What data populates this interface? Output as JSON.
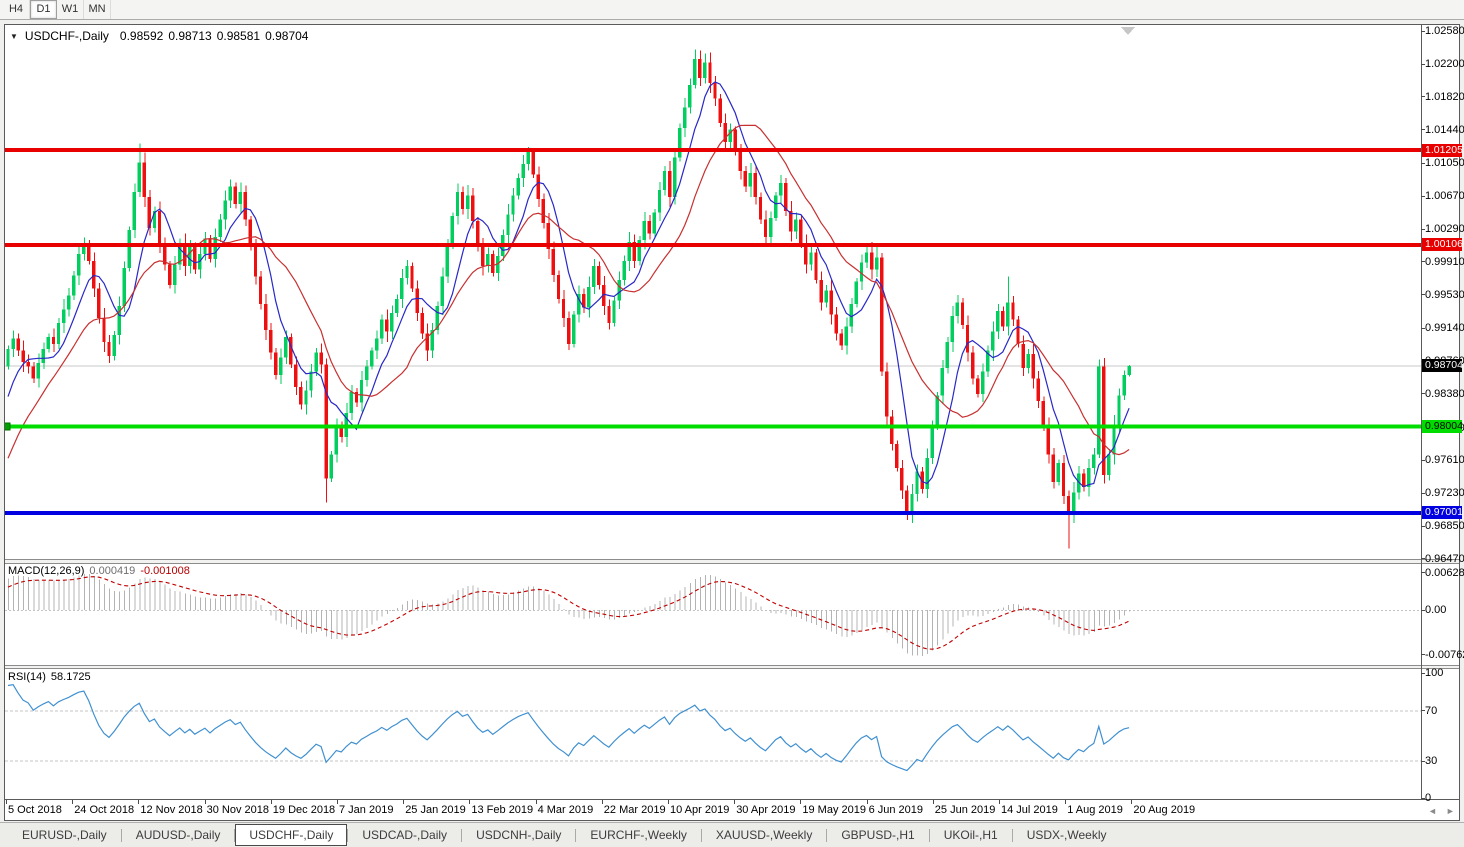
{
  "toolbar": {
    "timeframes": [
      "H4",
      "D1",
      "W1",
      "MN"
    ],
    "active": "D1"
  },
  "chart": {
    "title": "USDCHF-,Daily",
    "ohlc": {
      "open": "0.98592",
      "high": "0.98713",
      "low": "0.98581",
      "close": "0.98704"
    }
  },
  "macd": {
    "label": "MACD(12,26,9)",
    "value_main": "0.000419",
    "value_signal": "-0.001008",
    "axis_labels": [
      "0.006286",
      "0.00",
      "-0.00762"
    ]
  },
  "rsi": {
    "label": "RSI(14)",
    "value": "58.1725",
    "axis_labels": [
      "100",
      "70",
      "30",
      "0"
    ],
    "levels": [
      70,
      30
    ]
  },
  "nav_arrows": {
    "left": "◄",
    "right": "►"
  },
  "tabs": {
    "active": 2,
    "items": [
      "EURUSD-,Daily",
      "AUDUSD-,Daily",
      "USDCHF-,Daily",
      "USDCAD-,Daily",
      "USDCNH-,Daily",
      "EURCHF-,Weekly",
      "XAUUSD-,Weekly",
      "GBPUSD-,H1",
      "UKOil-,H1",
      "USDX-,Weekly"
    ]
  },
  "chart_data": {
    "type": "candlestick",
    "symbol": "USDCHF-",
    "timeframe": "Daily",
    "x_labels": [
      "5 Oct 2018",
      "24 Oct 2018",
      "12 Nov 2018",
      "30 Nov 2018",
      "19 Dec 2018",
      "7 Jan 2019",
      "25 Jan 2019",
      "13 Feb 2019",
      "4 Mar 2019",
      "22 Mar 2019",
      "10 Apr 2019",
      "30 Apr 2019",
      "19 May 2019",
      "6 Jun 2019",
      "25 Jun 2019",
      "14 Jul 2019",
      "1 Aug 2019",
      "20 Aug 2019"
    ],
    "price_axis_labels": [
      "1.02580",
      "1.02200",
      "1.01820",
      "1.01440",
      "1.01050",
      "1.00670",
      "1.00290",
      "0.99910",
      "0.99530",
      "0.99140",
      "0.98760",
      "0.98380",
      "0.97990",
      "0.97610",
      "0.97230",
      "0.96850",
      "0.96470"
    ],
    "preroll_closes": [
      0.9648,
      0.964,
      0.9655,
      0.9648,
      0.966,
      0.9652,
      0.9664,
      0.9655,
      0.9668,
      0.966,
      0.9672,
      0.9665,
      0.968,
      0.9692,
      0.9705,
      0.9718,
      0.973,
      0.9744,
      0.9758,
      0.9772,
      0.9786,
      0.98,
      0.9816,
      0.9832,
      0.985,
      0.987
    ],
    "closes": [
      0.989,
      0.9902,
      0.9888,
      0.9875,
      0.987,
      0.9856,
      0.9874,
      0.989,
      0.9904,
      0.9896,
      0.992,
      0.9936,
      0.9952,
      0.9975,
      1.0,
      1.0012,
      0.9992,
      0.996,
      0.9926,
      0.9898,
      0.9882,
      0.9906,
      0.994,
      0.9984,
      1.0028,
      1.0072,
      1.0106,
      1.0066,
      1.003,
      1.005,
      1.0012,
      0.9988,
      0.9964,
      0.9988,
      1.0012,
      0.9986,
      1.0008,
      0.9982,
      1.0,
      1.0018,
      0.9994,
      1.002,
      1.004,
      1.0062,
      1.0078,
      1.0058,
      1.0072,
      1.004,
      1.0008,
      0.9974,
      0.9942,
      0.9912,
      0.9886,
      0.986,
      0.988,
      0.9904,
      0.9872,
      0.9846,
      0.9826,
      0.9842,
      0.9864,
      0.9886,
      0.9872,
      0.974,
      0.9768,
      0.98,
      0.9788,
      0.9816,
      0.984,
      0.9828,
      0.9854,
      0.987,
      0.9888,
      0.9902,
      0.9924,
      0.991,
      0.9932,
      0.9948,
      0.9972,
      0.9986,
      0.996,
      0.9932,
      0.9908,
      0.9888,
      0.9912,
      0.994,
      0.9974,
      1.001,
      1.0044,
      1.0072,
      1.0052,
      1.0068,
      1.0038,
      1.0008,
      0.9986,
      1.0,
      0.9978,
      0.9998,
      1.0022,
      1.0046,
      1.0068,
      1.0088,
      1.0104,
      1.0118,
      1.0092,
      1.0064,
      1.0036,
      1.0006,
      0.9976,
      0.9948,
      0.9926,
      0.9896,
      0.993,
      0.9954,
      0.9938,
      0.9962,
      0.9986,
      0.9964,
      0.994,
      0.992,
      0.9946,
      0.997,
      0.9992,
      1.0014,
      0.9992,
      1.0016,
      1.0038,
      1.0024,
      1.0048,
      1.0074,
      1.0096,
      1.0066,
      1.0112,
      1.0146,
      1.017,
      1.0196,
      1.0226,
      1.0204,
      1.0222,
      1.0198,
      1.018,
      1.0152,
      1.013,
      1.0144,
      1.0118,
      1.0096,
      1.0078,
      1.0094,
      1.0066,
      1.004,
      1.002,
      1.0042,
      1.0068,
      1.0082,
      1.005,
      1.0026,
      1.004,
      1.0012,
      0.9988,
      1.0002,
      0.997,
      0.9944,
      0.9958,
      0.993,
      0.9908,
      0.9894,
      0.9916,
      0.9942,
      0.9968,
      0.999,
      1.0002,
      0.9982,
      0.9996,
      0.9864,
      0.9812,
      0.978,
      0.9752,
      0.9726,
      0.97,
      0.9722,
      0.9748,
      0.9728,
      0.9764,
      0.98,
      0.9836,
      0.9868,
      0.9898,
      0.9928,
      0.9944,
      0.9918,
      0.9886,
      0.9856,
      0.9838,
      0.9864,
      0.9888,
      0.991,
      0.9934,
      0.9916,
      0.9944,
      0.9924,
      0.9896,
      0.9868,
      0.9884,
      0.9856,
      0.983,
      0.98,
      0.9768,
      0.9736,
      0.9758,
      0.972,
      0.97,
      0.9724,
      0.9746,
      0.973,
      0.9752,
      0.9768,
      0.987,
      0.9744,
      0.9768,
      0.9802,
      0.9836,
      0.986,
      0.98704
    ],
    "spikes": {
      "26": {
        "h": 1.0128
      },
      "63": {
        "l": 0.9712
      },
      "103": {
        "h": 1.0124
      },
      "136": {
        "h": 1.0237
      },
      "138": {
        "h": 1.0232
      },
      "172": {
        "h": 1.0012
      },
      "178": {
        "l": 0.9692
      },
      "198": {
        "h": 0.9974
      },
      "210": {
        "l": 0.9659
      },
      "216": {
        "h": 0.9878
      },
      "222": {
        "h": 0.98713,
        "l": 0.98581
      }
    },
    "h_lines": [
      {
        "price": 1.01205,
        "label": "1.01205",
        "color": "#E80000",
        "text_color": "#FFFFFF",
        "role": "resistance"
      },
      {
        "price": 1.00106,
        "label": "1.00106",
        "color": "#E80000",
        "text_color": "#FFFFFF",
        "role": "resistance"
      },
      {
        "price": 0.98004,
        "label": "0.98004",
        "color": "#00DC00",
        "text_color": "#000000",
        "role": "support",
        "selected": true
      },
      {
        "price": 0.97001,
        "label": "0.97001",
        "color": "#0000E0",
        "text_color": "#FFFFFF",
        "role": "support"
      }
    ],
    "current_price": {
      "value": 0.98704,
      "label": "0.98704",
      "line_color": "#C8C8C8",
      "box_color": "#000000",
      "text_color": "#FFFFFF"
    },
    "ma": {
      "fast_period": 7,
      "slow_period": 17
    },
    "macd_params": {
      "fast": 12,
      "slow": 26,
      "signal": 9
    },
    "rsi_period": 14,
    "colors": {
      "up": "#00CE5E",
      "down": "#EE1010",
      "ma_fast": "#2828C8",
      "ma_slow": "#C83030",
      "macd_bar": "#B4B4B4",
      "macd_signal": "#C00000",
      "rsi": "#4090D0",
      "grid_current": "#C8C8C8"
    }
  }
}
